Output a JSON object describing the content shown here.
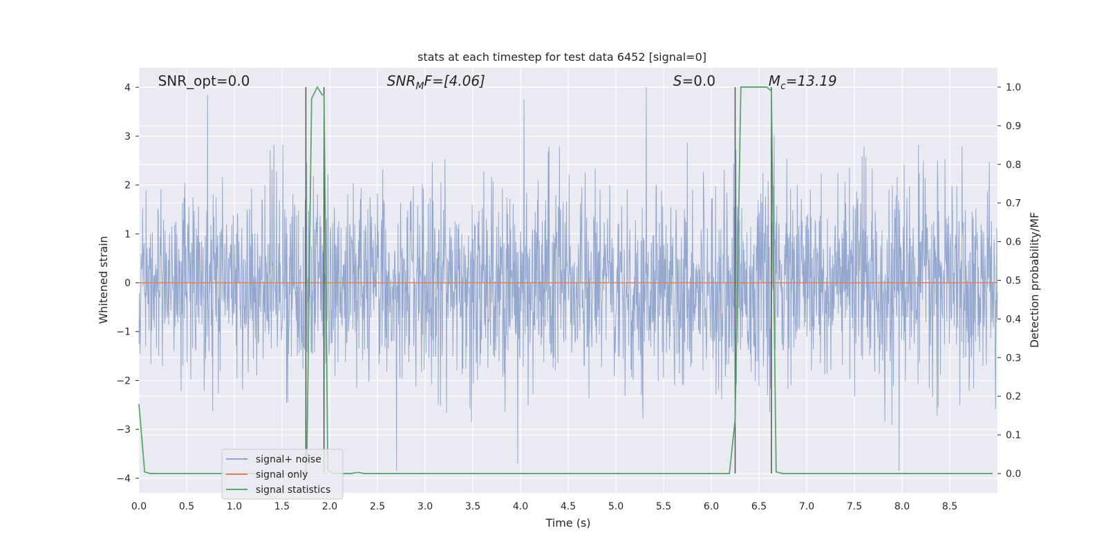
{
  "chart_data": {
    "type": "line",
    "title": "stats at each timestep for test data 6452 [signal=0]",
    "xlabel": "Time (s)",
    "ylabel": "Whitened strain",
    "y2label": "Detection probability/MF",
    "xlim": [
      0,
      9.0
    ],
    "ylim": [
      -4.3,
      4.4
    ],
    "y2lim": [
      -0.05,
      1.05
    ],
    "xticks": [
      "0.0",
      "0.5",
      "1.0",
      "1.5",
      "2.0",
      "2.5",
      "3.0",
      "3.5",
      "4.0",
      "4.5",
      "5.0",
      "5.5",
      "6.0",
      "6.5",
      "7.0",
      "7.5",
      "8.0",
      "8.5"
    ],
    "yticks": [
      "4",
      "3",
      "2",
      "1",
      "0",
      "−1",
      "−2",
      "−3",
      "−4"
    ],
    "y2ticks": [
      "1.0",
      "0.9",
      "0.8",
      "0.7",
      "0.6",
      "0.5",
      "0.4",
      "0.3",
      "0.2",
      "0.1",
      "0.0"
    ],
    "grid": true,
    "legend_position": "lower-left",
    "annotations": [
      {
        "text": "SNR_opt=0.0",
        "x": 0.2
      },
      {
        "text": "SNR",
        "sub": "M",
        "tail": "F=[4.06]",
        "x": 2.6
      },
      {
        "text": "S",
        "tail": "=0.0",
        "x": 5.6
      },
      {
        "text": "M",
        "sub": "c",
        "tail": "=13.19",
        "x": 6.6
      }
    ],
    "vertical_lines_x": [
      1.75,
      1.94,
      6.25,
      6.63
    ],
    "series": [
      {
        "name": "signal+ noise",
        "color": "#8fa4cc",
        "axis": "left",
        "description": "whitened strain noise, roughly Gaussian, amplitude ±4",
        "sample_count": 2304,
        "amplitude_std": 1.0,
        "peaks": [
          [
            0.72,
            3.85
          ],
          [
            5.32,
            4.0
          ],
          [
            1.94,
            -3.85
          ],
          [
            2.7,
            -3.85
          ],
          [
            7.97,
            -3.85
          ],
          [
            3.97,
            -3.7
          ]
        ]
      },
      {
        "name": "signal only",
        "color": "#dd8452",
        "axis": "left",
        "x": [
          0,
          9.0
        ],
        "y": [
          0,
          0
        ]
      },
      {
        "name": "signal statistics",
        "color": "#55a868",
        "axis": "right",
        "x": [
          0.0,
          0.06,
          0.12,
          0.18,
          1.7,
          1.74,
          1.76,
          1.81,
          1.87,
          1.92,
          1.94,
          1.98,
          2.04,
          2.22,
          2.3,
          2.36,
          6.19,
          6.25,
          6.31,
          6.58,
          6.63,
          6.68,
          6.75,
          6.81,
          8.95
        ],
        "y": [
          0.18,
          0.004,
          0.0,
          0.0,
          0.0,
          0.0,
          0.03,
          0.97,
          1.0,
          0.98,
          0.98,
          0.01,
          0.0,
          0.0,
          0.003,
          0.0,
          0.0,
          0.14,
          1.0,
          1.0,
          0.99,
          0.004,
          0.0,
          0.0,
          0.0
        ]
      }
    ]
  }
}
